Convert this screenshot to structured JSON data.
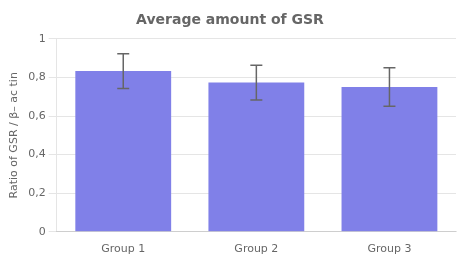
{
  "chart_data": {
    "type": "bar",
    "title": "Average amount of GSR",
    "ylabel": "Ratio of GSR / β– ac tin",
    "categories": [
      "Group 1",
      "Group 2",
      "Group 3"
    ],
    "values": [
      0.833,
      0.773,
      0.75
    ],
    "errors": [
      0.09,
      0.09,
      0.1
    ],
    "color": "#8080e8",
    "ylim": [
      0,
      1.0
    ],
    "yticks": [
      0,
      {
        "value": 0.2,
        "label": "0,2"
      },
      {
        "value": 0.4,
        "label": "0,4"
      },
      {
        "value": 0.6,
        "label": "0,6"
      },
      {
        "value": 0.8,
        "label": "0,8"
      },
      1.0
    ],
    "grid": true
  }
}
